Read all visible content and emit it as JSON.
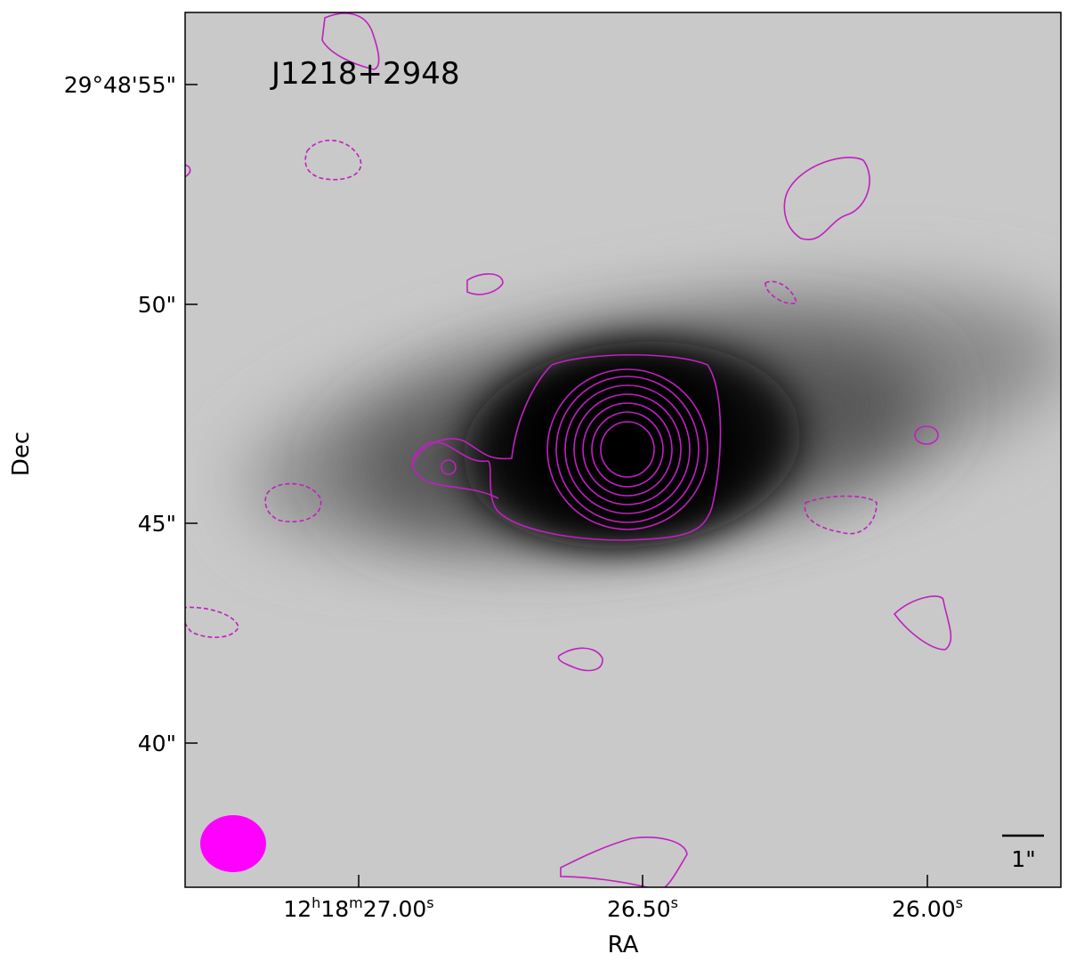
{
  "figure": {
    "title": "J1218+2948",
    "x_label": "RA",
    "y_label": "Dec",
    "x_ticks": [
      [
        "12",
        "h",
        "18",
        "m",
        "27.00",
        "s"
      ],
      [
        "26.50",
        "s"
      ],
      [
        "26.00",
        "s"
      ]
    ],
    "y_ticks": [
      "29°48'55\"",
      "50\"",
      "45\"",
      "40\""
    ],
    "scale_bar": "1\""
  }
}
